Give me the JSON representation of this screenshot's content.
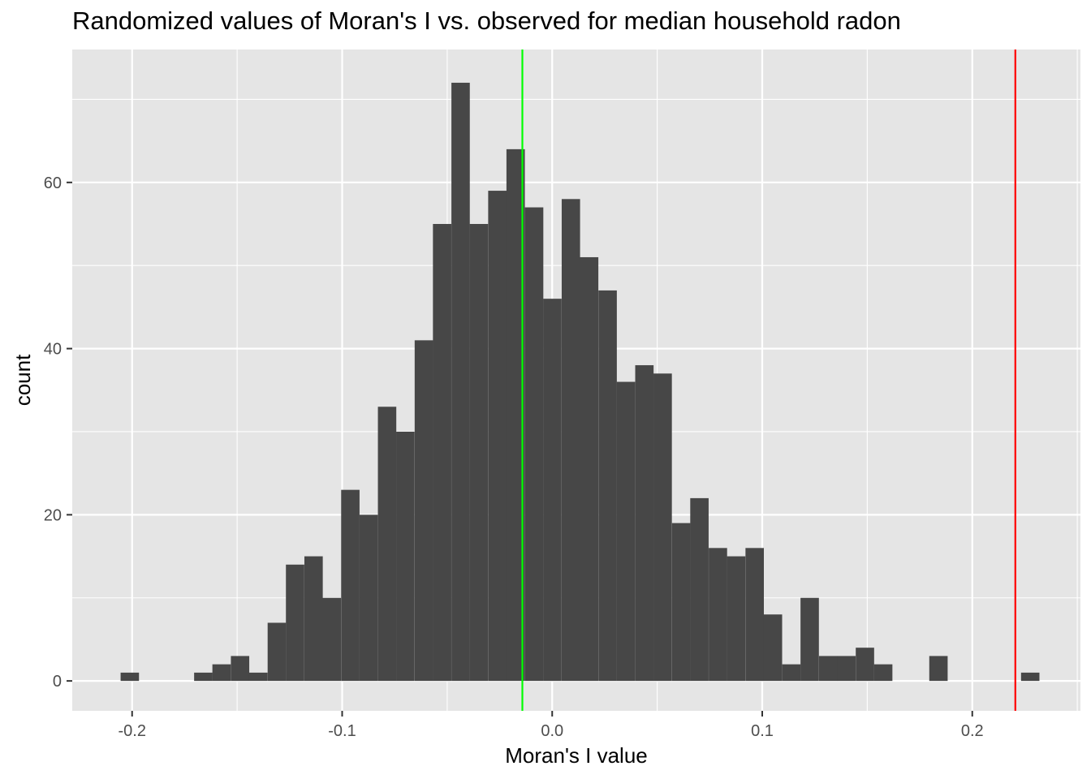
{
  "chart_data": {
    "type": "bar",
    "title": "Randomized values of Moran's I vs. observed for median household radon",
    "xlabel": "Moran's I value",
    "ylabel": "count",
    "xlim": [
      -0.2285,
      0.2515
    ],
    "ylim": [
      -3.6,
      76
    ],
    "x_ticks": [
      -0.2,
      -0.1,
      0.0,
      0.1,
      0.2
    ],
    "x_tick_labels": [
      "-0.2",
      "-0.1",
      "0.0",
      "0.1",
      "0.2"
    ],
    "y_ticks": [
      0,
      20,
      40,
      60
    ],
    "y_tick_labels": [
      "0",
      "20",
      "40",
      "60"
    ],
    "y_minor_ticks": [
      10,
      30,
      50,
      70
    ],
    "bin_width": 0.00875,
    "bins": [
      {
        "x": -0.2011,
        "count": 1
      },
      {
        "x": -0.1924,
        "count": 0
      },
      {
        "x": -0.1836,
        "count": 0
      },
      {
        "x": -0.1749,
        "count": 0
      },
      {
        "x": -0.1661,
        "count": 1
      },
      {
        "x": -0.1574,
        "count": 2
      },
      {
        "x": -0.1486,
        "count": 3
      },
      {
        "x": -0.1399,
        "count": 1
      },
      {
        "x": -0.1311,
        "count": 7
      },
      {
        "x": -0.1224,
        "count": 14
      },
      {
        "x": -0.1136,
        "count": 15
      },
      {
        "x": -0.1049,
        "count": 10
      },
      {
        "x": -0.0961,
        "count": 23
      },
      {
        "x": -0.0874,
        "count": 20
      },
      {
        "x": -0.0786,
        "count": 33
      },
      {
        "x": -0.0699,
        "count": 30
      },
      {
        "x": -0.0611,
        "count": 41
      },
      {
        "x": -0.0524,
        "count": 55
      },
      {
        "x": -0.0436,
        "count": 72
      },
      {
        "x": -0.0349,
        "count": 55
      },
      {
        "x": -0.0261,
        "count": 59
      },
      {
        "x": -0.0174,
        "count": 64
      },
      {
        "x": -0.0086,
        "count": 57
      },
      {
        "x": 0.0001,
        "count": 46
      },
      {
        "x": 0.0089,
        "count": 58
      },
      {
        "x": 0.0176,
        "count": 51
      },
      {
        "x": 0.0264,
        "count": 47
      },
      {
        "x": 0.0351,
        "count": 36
      },
      {
        "x": 0.0439,
        "count": 38
      },
      {
        "x": 0.0526,
        "count": 37
      },
      {
        "x": 0.0614,
        "count": 19
      },
      {
        "x": 0.0701,
        "count": 22
      },
      {
        "x": 0.0789,
        "count": 16
      },
      {
        "x": 0.0876,
        "count": 15
      },
      {
        "x": 0.0964,
        "count": 16
      },
      {
        "x": 0.1051,
        "count": 8
      },
      {
        "x": 0.1139,
        "count": 2
      },
      {
        "x": 0.1226,
        "count": 10
      },
      {
        "x": 0.1314,
        "count": 3
      },
      {
        "x": 0.1401,
        "count": 3
      },
      {
        "x": 0.1489,
        "count": 4
      },
      {
        "x": 0.1576,
        "count": 2
      },
      {
        "x": 0.1664,
        "count": 0
      },
      {
        "x": 0.1751,
        "count": 0
      },
      {
        "x": 0.1839,
        "count": 3
      },
      {
        "x": 0.1926,
        "count": 0
      },
      {
        "x": 0.2014,
        "count": 0
      },
      {
        "x": 0.2101,
        "count": 0
      },
      {
        "x": 0.2189,
        "count": 0
      },
      {
        "x": 0.2276,
        "count": 1
      }
    ],
    "reference_lines": [
      {
        "x": -0.0142,
        "color": "#00ff00"
      },
      {
        "x": 0.2205,
        "color": "#ff0000"
      }
    ],
    "grid": true,
    "bar_color": "#474747",
    "panel_color": "#e5e5e5",
    "grid_color": "#ffffff"
  }
}
